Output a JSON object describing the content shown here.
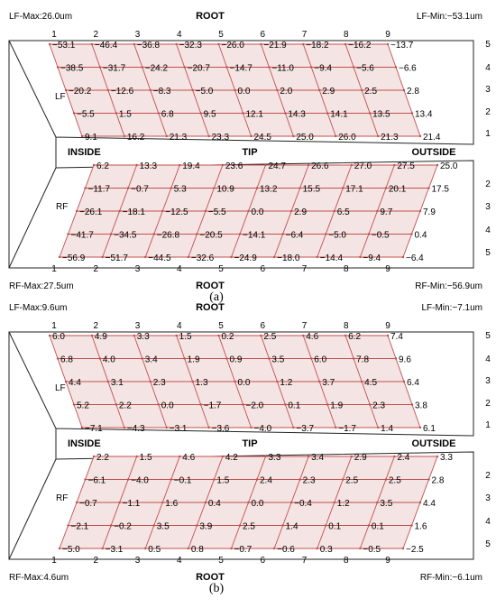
{
  "panels": [
    {
      "caption": "(a)",
      "lf_max": "LF-Max:26.0um",
      "lf_min": "LF-Min:−53.1um",
      "rf_max": "RF-Max:27.5um",
      "rf_min": "RF-Min:−56.9um",
      "root_top": "ROOT",
      "root_bottom": "ROOT",
      "inside": "INSIDE",
      "tip": "TIP",
      "outside": "OUTSIDE",
      "lf_label": "LF",
      "rf_label": "RF",
      "col_labels": [
        "1",
        "2",
        "3",
        "4",
        "5",
        "6",
        "7",
        "8",
        "9"
      ],
      "row_labels": [
        "5",
        "4",
        "3",
        "2",
        "1"
      ],
      "lf_values": [
        [
          "−53.1",
          "−46.4",
          "−36.8",
          "−32.3",
          "−26.0",
          "−21.9",
          "−18.2",
          "−16.2",
          "−13.7"
        ],
        [
          "−38.5",
          "−31.7",
          "−24.2",
          "−20.7",
          "−14.7",
          "−11.0",
          "−9.4",
          "−5.6",
          "−6.6"
        ],
        [
          "−20.2",
          "−12.6",
          "−8.3",
          "−5.0",
          "0.0",
          "2.0",
          "2.9",
          "2.5",
          "2.8"
        ],
        [
          "−5.5",
          "1.5",
          "6.8",
          "9.5",
          "12.1",
          "14.3",
          "14.1",
          "13.5",
          "13.4"
        ],
        [
          "9.1",
          "16.2",
          "21.3",
          "23.3",
          "24.5",
          "25.0",
          "26.0",
          "21.3",
          "21.4"
        ]
      ],
      "rf_values": [
        [
          "6.2",
          "13.3",
          "19.4",
          "23.6",
          "24.7",
          "26.6",
          "27.0",
          "27.5",
          "25.0"
        ],
        [
          "−11.7",
          "−0.7",
          "5.3",
          "10.9",
          "13.2",
          "15.5",
          "17.1",
          "20.1",
          "17.5"
        ],
        [
          "−26.1",
          "−18.1",
          "−12.5",
          "−5.5",
          "0.0",
          "2.9",
          "6.5",
          "9.7",
          "7.9"
        ],
        [
          "−41.7",
          "−34.5",
          "−26.8",
          "−20.5",
          "−14.1",
          "−6.4",
          "−5.0",
          "−0.5",
          "0.4"
        ],
        [
          "−56.9",
          "−51.7",
          "−44.5",
          "−32.6",
          "−24.9",
          "−18.0",
          "−14.4",
          "−9.4",
          "−6.4"
        ]
      ]
    },
    {
      "caption": "(b)",
      "lf_max": "LF-Max:9.6um",
      "lf_min": "LF-Min:−7.1um",
      "rf_max": "RF-Max:4.6um",
      "rf_min": "RF-Min:−6.1um",
      "root_top": "ROOT",
      "root_bottom": "ROOT",
      "inside": "INSIDE",
      "tip": "TIP",
      "outside": "OUTSIDE",
      "lf_label": "LF",
      "rf_label": "RF",
      "col_labels": [
        "1",
        "2",
        "3",
        "4",
        "5",
        "6",
        "7",
        "8",
        "9"
      ],
      "row_labels": [
        "5",
        "4",
        "3",
        "2",
        "1"
      ],
      "lf_values": [
        [
          "6.0",
          "4.9",
          "3.3",
          "1.5",
          "0.2",
          "2.5",
          "4.6",
          "6.2",
          "7.4"
        ],
        [
          "6.8",
          "4.0",
          "3.4",
          "1.9",
          "0.9",
          "3.5",
          "6.0",
          "7.8",
          "9.6"
        ],
        [
          "4.4",
          "3.1",
          "2.3",
          "1.3",
          "0.0",
          "1.2",
          "3.7",
          "4.5",
          "6.4"
        ],
        [
          "5.2",
          "2.2",
          "0.0",
          "−1.7",
          "−2.0",
          "0.1",
          "1.9",
          "2.3",
          "3.8"
        ],
        [
          "−7.1",
          "−4.3",
          "−3.1",
          "−3.6",
          "−4.0",
          "−3.7",
          "−1.7",
          "1.4",
          "6.1"
        ]
      ],
      "rf_values": [
        [
          "2.2",
          "1.5",
          "4.6",
          "4.2",
          "3.3",
          "3.4",
          "2.9",
          "2.4",
          "3.3"
        ],
        [
          "−6.1",
          "−4.0",
          "−0.1",
          "1.5",
          "2.4",
          "2.3",
          "2.5",
          "2.5",
          "2.8"
        ],
        [
          "−0.7",
          "−1.1",
          "1.6",
          "0.4",
          "0.0",
          "−0.4",
          "1.2",
          "3.5",
          "4.4"
        ],
        [
          "−2.1",
          "−0.2",
          "3.5",
          "3.9",
          "2.5",
          "1.4",
          "0.1",
          "0.1",
          "1.6"
        ],
        [
          "−5.0",
          "−3.1",
          "0.5",
          "0.8",
          "−0.7",
          "−0.6",
          "0.3",
          "−0.5",
          "−2.5"
        ]
      ]
    }
  ],
  "colors": {
    "mesh": "#c0504d",
    "fill": "#f5e4e4",
    "outline": "#222222"
  }
}
